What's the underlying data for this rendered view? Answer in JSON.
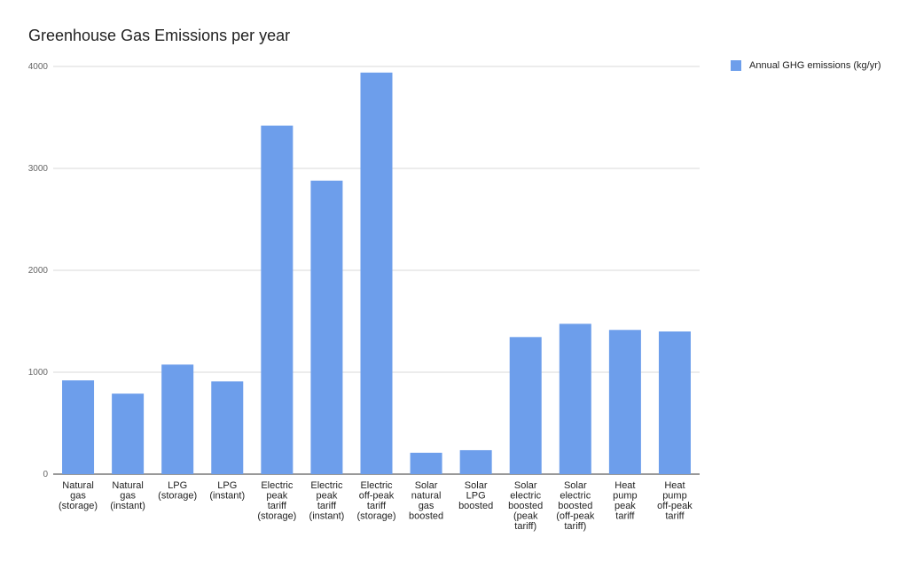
{
  "chart_data": {
    "type": "bar",
    "title": "Greenhouse Gas Emissions per year",
    "xlabel": "",
    "ylabel": "",
    "ylim": [
      0,
      4000
    ],
    "yticks": [
      "0",
      "1000",
      "2000",
      "3000",
      "4000"
    ],
    "grid": true,
    "legend_position": "top-right",
    "categories": [
      [
        "Natural",
        "gas",
        "(storage)"
      ],
      [
        "Natural",
        "gas",
        "(instant)"
      ],
      [
        "LPG",
        "(storage)"
      ],
      [
        "LPG",
        "(instant)"
      ],
      [
        "Electric",
        "peak",
        "tariff",
        "(storage)"
      ],
      [
        "Electric",
        "peak",
        "tariff",
        "(instant)"
      ],
      [
        "Electric",
        "off-peak",
        "tariff",
        "(storage)"
      ],
      [
        "Solar",
        "natural",
        "gas",
        "boosted"
      ],
      [
        "Solar",
        "LPG",
        "boosted"
      ],
      [
        "Solar",
        "electric",
        "boosted",
        "(peak",
        "tariff)"
      ],
      [
        "Solar",
        "electric",
        "boosted",
        "(off-peak",
        "tariff)"
      ],
      [
        "Heat",
        "pump",
        "peak",
        "tariff"
      ],
      [
        "Heat",
        "pump",
        "off-peak",
        "tariff"
      ]
    ],
    "series": [
      {
        "name": "Annual GHG emissions (kg/yr)",
        "color": "#6d9eeb",
        "values": [
          920,
          790,
          1075,
          910,
          3420,
          2880,
          3940,
          210,
          235,
          1345,
          1475,
          1415,
          1400
        ]
      }
    ]
  }
}
